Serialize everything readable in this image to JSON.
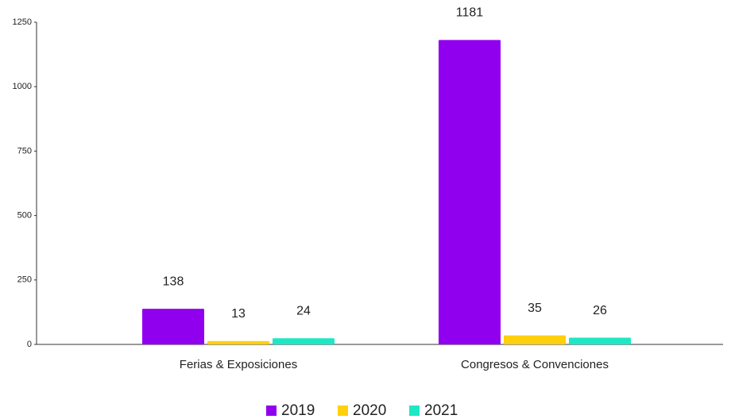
{
  "chart_data": {
    "type": "bar",
    "categories": [
      "Ferias & Exposiciones",
      "Congresos & Convenciones"
    ],
    "series": [
      {
        "name": "2019",
        "color": "#9100ee",
        "values": [
          138,
          1181
        ]
      },
      {
        "name": "2020",
        "color": "#ffd00b",
        "values": [
          13,
          35
        ]
      },
      {
        "name": "2021",
        "color": "#1ee8c4",
        "values": [
          24,
          26
        ]
      }
    ],
    "ylim": [
      0,
      1250
    ],
    "yticks": [
      0,
      250,
      500,
      750,
      1000,
      1250
    ],
    "grid": false
  }
}
